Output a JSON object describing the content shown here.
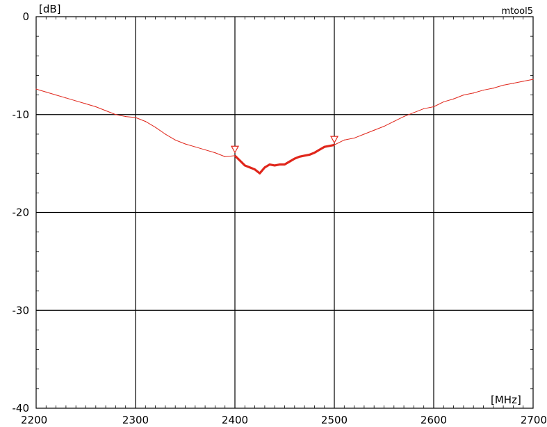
{
  "tool_label": "mtool5",
  "chart_data": {
    "type": "line",
    "ylabel": "[dB]",
    "xlabel": "[MHz]",
    "xlim": [
      2200,
      2700
    ],
    "ylim": [
      -40,
      0
    ],
    "x_ticks": [
      2200,
      2300,
      2400,
      2500,
      2600,
      2700
    ],
    "y_ticks": [
      0,
      -10,
      -20,
      -30,
      -40
    ],
    "grid": true,
    "colors": {
      "trace": "#e0261b",
      "grid": "#000000"
    },
    "series": [
      {
        "x": [
          2200,
          2210,
          2220,
          2230,
          2240,
          2250,
          2260,
          2270,
          2280,
          2290,
          2300,
          2310,
          2320,
          2330,
          2340,
          2350,
          2360,
          2370,
          2380,
          2390,
          2400,
          2405,
          2410,
          2415,
          2420,
          2425,
          2430,
          2435,
          2440,
          2445,
          2450,
          2455,
          2460,
          2465,
          2470,
          2475,
          2480,
          2485,
          2490,
          2495,
          2500,
          2510,
          2520,
          2530,
          2540,
          2550,
          2560,
          2570,
          2580,
          2590,
          2600,
          2610,
          2620,
          2630,
          2640,
          2650,
          2660,
          2670,
          2680,
          2690,
          2700
        ],
        "values": [
          -7.4,
          -7.7,
          -8.0,
          -8.3,
          -8.6,
          -8.9,
          -9.2,
          -9.6,
          -10.0,
          -10.2,
          -10.3,
          -10.7,
          -11.3,
          -12.0,
          -12.6,
          -13.0,
          -13.3,
          -13.6,
          -13.9,
          -14.3,
          -14.2,
          -14.7,
          -15.2,
          -15.4,
          -15.6,
          -16.0,
          -15.4,
          -15.1,
          -15.2,
          -15.1,
          -15.1,
          -14.8,
          -14.5,
          -14.3,
          -14.2,
          -14.1,
          -13.9,
          -13.6,
          -13.3,
          -13.2,
          -13.1,
          -12.6,
          -12.4,
          -12.0,
          -11.6,
          -11.2,
          -10.7,
          -10.2,
          -9.8,
          -9.4,
          -9.2,
          -8.7,
          -8.4,
          -8.0,
          -7.8,
          -7.5,
          -7.3,
          -7.0,
          -6.8,
          -6.6,
          -6.4
        ]
      }
    ],
    "highlight_range": [
      2400,
      2500
    ],
    "markers": [
      {
        "x": 2400,
        "y": -13.8
      },
      {
        "x": 2500,
        "y": -12.8
      }
    ]
  }
}
